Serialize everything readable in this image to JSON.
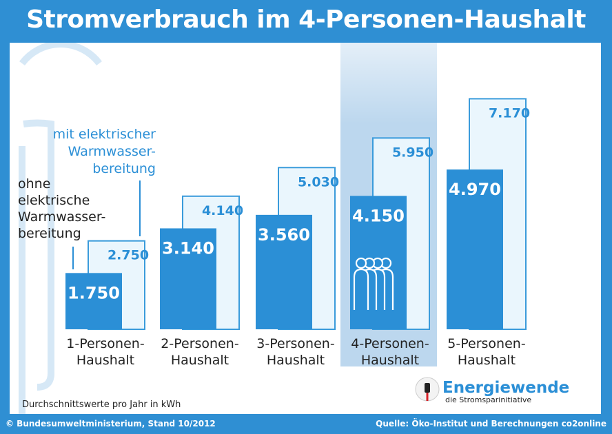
{
  "title": "Stromverbrauch im 4-Personen-Haushalt",
  "chart_data": {
    "type": "bar",
    "categories": [
      [
        "1-Personen-",
        "Haushalt"
      ],
      [
        "2-Personen-",
        "Haushalt"
      ],
      [
        "3-Personen-",
        "Haushalt"
      ],
      [
        "4-Personen-",
        "Haushalt"
      ],
      [
        "5-Personen-",
        "Haushalt"
      ]
    ],
    "series": [
      {
        "name": "ohne elektrische Warmwasserbereitung",
        "values": [
          1750,
          3140,
          3560,
          4150,
          4970
        ],
        "labels": [
          "1.750",
          "3.140",
          "3.560",
          "4.150",
          "4.970"
        ]
      },
      {
        "name": "mit elektrischer Warmwasserbereitung",
        "values": [
          2750,
          4140,
          5030,
          5950,
          7170
        ],
        "labels": [
          "2.750",
          "4.140",
          "5.030",
          "5.950",
          "7.170"
        ]
      }
    ],
    "highlight_index": 3,
    "ylim": [
      0,
      7500
    ],
    "unit_note": "Durchschnittswerte pro Jahr in kWh"
  },
  "legend": {
    "without": [
      "ohne",
      "elektrische",
      "Warmwasser-",
      "bereitung"
    ],
    "with": [
      "mit elektrischer",
      "Warmwasser-",
      "bereitung"
    ]
  },
  "logo": {
    "name": "Energiewende",
    "subtitle": "die Stromsparinitiative"
  },
  "footer": {
    "left": "© Bundesumweltministerium, Stand 10/2012",
    "right": "Quelle: Öko-Institut und Berechnungen co2online"
  },
  "colors": {
    "frame": "#2f8fd3",
    "bar_dark": "#2b8fd6",
    "bar_light": "#eaf6fd",
    "bar_light_border": "#3a9bdb",
    "highlight": "#bcd7ee",
    "text_blue": "#2b8fd6"
  }
}
